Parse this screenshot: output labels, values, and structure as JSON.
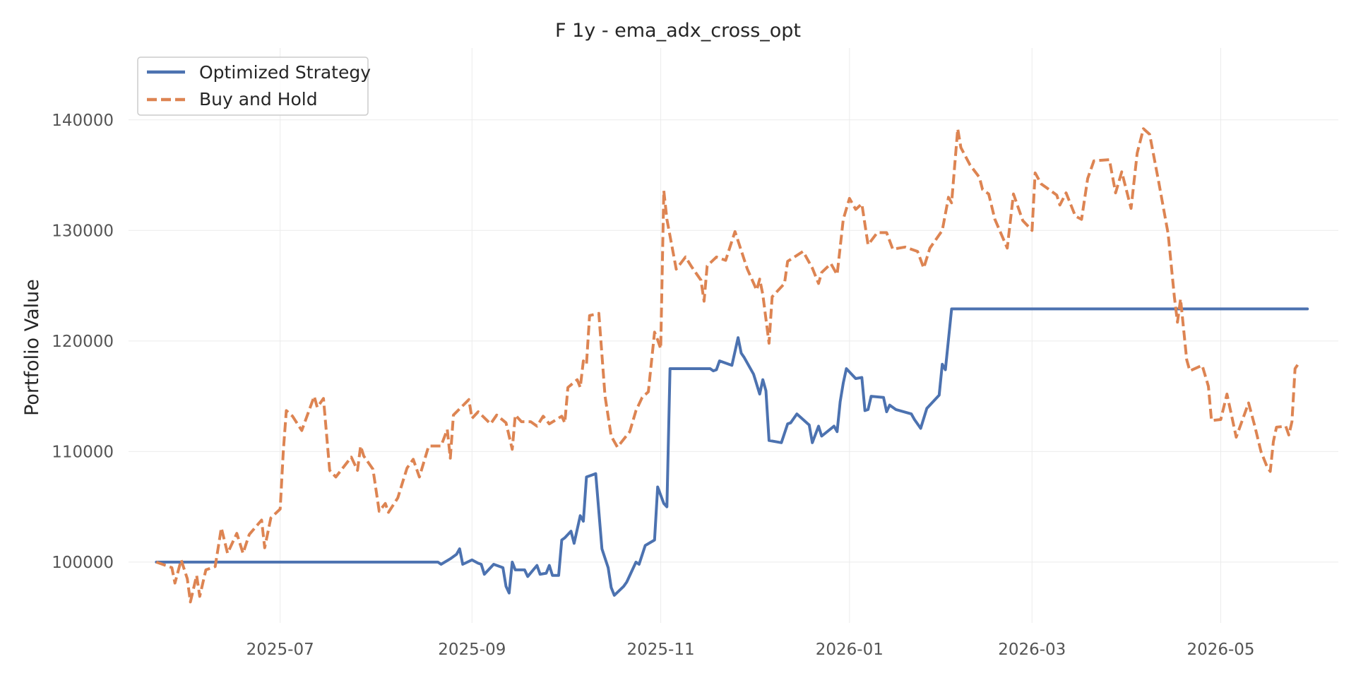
{
  "chart_data": {
    "type": "line",
    "title": "F 1y - ema_adx_cross_opt",
    "xlabel": "",
    "ylabel": "Portfolio Value",
    "x_ticks": [
      "2025-07",
      "2025-09",
      "2025-11",
      "2026-01",
      "2026-03",
      "2026-05"
    ],
    "y_ticks": [
      "100000",
      "110000",
      "120000",
      "130000",
      "140000"
    ],
    "xlim": [
      "2025-05-13",
      "2026-06-08"
    ],
    "ylim": [
      94500,
      146500
    ],
    "grid": true,
    "legend_position": "top-left",
    "series": [
      {
        "name": "Optimized Strategy",
        "color": "#4c72b0",
        "style": "solid",
        "points": [
          [
            "2025-05-22",
            100000
          ],
          [
            "2025-08-21",
            100000
          ],
          [
            "2025-08-22",
            99800
          ],
          [
            "2025-08-25",
            100300
          ],
          [
            "2025-08-27",
            100700
          ],
          [
            "2025-08-28",
            101200
          ],
          [
            "2025-08-29",
            99800
          ],
          [
            "2025-09-01",
            100200
          ],
          [
            "2025-09-03",
            99900
          ],
          [
            "2025-09-04",
            99800
          ],
          [
            "2025-09-05",
            98900
          ],
          [
            "2025-09-08",
            99800
          ],
          [
            "2025-09-11",
            99500
          ],
          [
            "2025-09-12",
            97800
          ],
          [
            "2025-09-13",
            97200
          ],
          [
            "2025-09-14",
            100000
          ],
          [
            "2025-09-15",
            99300
          ],
          [
            "2025-09-18",
            99300
          ],
          [
            "2025-09-19",
            98700
          ],
          [
            "2025-09-22",
            99700
          ],
          [
            "2025-09-23",
            98900
          ],
          [
            "2025-09-25",
            99000
          ],
          [
            "2025-09-26",
            99700
          ],
          [
            "2025-09-27",
            98800
          ],
          [
            "2025-09-29",
            98800
          ],
          [
            "2025-09-30",
            102000
          ],
          [
            "2025-10-01",
            102200
          ],
          [
            "2025-10-03",
            102800
          ],
          [
            "2025-10-04",
            101700
          ],
          [
            "2025-10-06",
            104200
          ],
          [
            "2025-10-07",
            103700
          ],
          [
            "2025-10-08",
            107700
          ],
          [
            "2025-10-10",
            107900
          ],
          [
            "2025-10-11",
            108000
          ],
          [
            "2025-10-13",
            101200
          ],
          [
            "2025-10-15",
            99500
          ],
          [
            "2025-10-16",
            97700
          ],
          [
            "2025-10-17",
            97000
          ],
          [
            "2025-10-20",
            97800
          ],
          [
            "2025-10-21",
            98200
          ],
          [
            "2025-10-24",
            100000
          ],
          [
            "2025-10-25",
            99800
          ],
          [
            "2025-10-27",
            101500
          ],
          [
            "2025-10-30",
            102000
          ],
          [
            "2025-10-31",
            106800
          ],
          [
            "2025-11-02",
            105300
          ],
          [
            "2025-11-03",
            105000
          ],
          [
            "2025-11-04",
            117500
          ],
          [
            "2025-11-17",
            117500
          ],
          [
            "2025-11-18",
            117300
          ],
          [
            "2025-11-19",
            117400
          ],
          [
            "2025-11-20",
            118200
          ],
          [
            "2025-11-24",
            117800
          ],
          [
            "2025-11-26",
            120300
          ],
          [
            "2025-11-27",
            118900
          ],
          [
            "2025-11-28",
            118500
          ],
          [
            "2025-12-01",
            117000
          ],
          [
            "2025-12-03",
            115200
          ],
          [
            "2025-12-04",
            116500
          ],
          [
            "2025-12-05",
            115500
          ],
          [
            "2025-12-06",
            111000
          ],
          [
            "2025-12-10",
            110800
          ],
          [
            "2025-12-12",
            112500
          ],
          [
            "2025-12-13",
            112600
          ],
          [
            "2025-12-15",
            113400
          ],
          [
            "2025-12-19",
            112400
          ],
          [
            "2025-12-20",
            110800
          ],
          [
            "2025-12-22",
            112300
          ],
          [
            "2025-12-23",
            111400
          ],
          [
            "2025-12-27",
            112300
          ],
          [
            "2025-12-28",
            111800
          ],
          [
            "2025-12-29",
            114500
          ],
          [
            "2025-12-30",
            116200
          ],
          [
            "2025-12-31",
            117500
          ],
          [
            "2026-01-03",
            116600
          ],
          [
            "2026-01-05",
            116700
          ],
          [
            "2026-01-06",
            113700
          ],
          [
            "2026-01-07",
            113800
          ],
          [
            "2026-01-08",
            115000
          ],
          [
            "2026-01-12",
            114900
          ],
          [
            "2026-01-13",
            113600
          ],
          [
            "2026-01-14",
            114200
          ],
          [
            "2026-01-16",
            113800
          ],
          [
            "2026-01-21",
            113400
          ],
          [
            "2026-01-22",
            112900
          ],
          [
            "2026-01-24",
            112100
          ],
          [
            "2026-01-26",
            113900
          ],
          [
            "2026-01-30",
            115100
          ],
          [
            "2026-01-31",
            117900
          ],
          [
            "2026-02-01",
            117400
          ],
          [
            "2026-02-03",
            122900
          ],
          [
            "2026-05-29",
            122900
          ]
        ]
      },
      {
        "name": "Buy and Hold",
        "color": "#dd8452",
        "style": "dashed",
        "points": [
          [
            "2025-05-22",
            100000
          ],
          [
            "2025-05-27",
            99500
          ],
          [
            "2025-05-28",
            98100
          ],
          [
            "2025-05-30",
            100200
          ],
          [
            "2025-06-01",
            98500
          ],
          [
            "2025-06-02",
            96400
          ],
          [
            "2025-06-04",
            98800
          ],
          [
            "2025-06-05",
            96900
          ],
          [
            "2025-06-07",
            99300
          ],
          [
            "2025-06-10",
            99600
          ],
          [
            "2025-06-12",
            103100
          ],
          [
            "2025-06-14",
            100800
          ],
          [
            "2025-06-17",
            102600
          ],
          [
            "2025-06-19",
            100800
          ],
          [
            "2025-06-21",
            102500
          ],
          [
            "2025-06-25",
            103800
          ],
          [
            "2025-06-26",
            101300
          ],
          [
            "2025-06-28",
            104000
          ],
          [
            "2025-07-01",
            104800
          ],
          [
            "2025-07-02",
            110000
          ],
          [
            "2025-07-03",
            113700
          ],
          [
            "2025-07-05",
            113200
          ],
          [
            "2025-07-08",
            111900
          ],
          [
            "2025-07-12",
            115000
          ],
          [
            "2025-07-13",
            114000
          ],
          [
            "2025-07-15",
            114800
          ],
          [
            "2025-07-17",
            108300
          ],
          [
            "2025-07-19",
            107700
          ],
          [
            "2025-07-24",
            109500
          ],
          [
            "2025-07-26",
            108300
          ],
          [
            "2025-07-27",
            110500
          ],
          [
            "2025-07-28",
            109600
          ],
          [
            "2025-07-31",
            108400
          ],
          [
            "2025-08-02",
            104600
          ],
          [
            "2025-08-04",
            105300
          ],
          [
            "2025-08-05",
            104500
          ],
          [
            "2025-08-08",
            105800
          ],
          [
            "2025-08-11",
            108500
          ],
          [
            "2025-08-13",
            109300
          ],
          [
            "2025-08-15",
            107700
          ],
          [
            "2025-08-18",
            110500
          ],
          [
            "2025-08-22",
            110500
          ],
          [
            "2025-08-24",
            112000
          ],
          [
            "2025-08-25",
            109400
          ],
          [
            "2025-08-26",
            113300
          ],
          [
            "2025-08-31",
            114700
          ],
          [
            "2025-09-01",
            113000
          ],
          [
            "2025-09-03",
            113600
          ],
          [
            "2025-09-07",
            112500
          ],
          [
            "2025-09-09",
            113300
          ],
          [
            "2025-09-12",
            112600
          ],
          [
            "2025-09-14",
            110200
          ],
          [
            "2025-09-15",
            113300
          ],
          [
            "2025-09-17",
            112700
          ],
          [
            "2025-09-20",
            112700
          ],
          [
            "2025-09-22",
            112300
          ],
          [
            "2025-09-24",
            113200
          ],
          [
            "2025-09-26",
            112500
          ],
          [
            "2025-09-30",
            113200
          ],
          [
            "2025-10-01",
            112600
          ],
          [
            "2025-10-02",
            115800
          ],
          [
            "2025-10-05",
            116500
          ],
          [
            "2025-10-06",
            115800
          ],
          [
            "2025-10-07",
            118200
          ],
          [
            "2025-10-08",
            117900
          ],
          [
            "2025-10-09",
            122300
          ],
          [
            "2025-10-12",
            122500
          ],
          [
            "2025-10-14",
            115000
          ],
          [
            "2025-10-16",
            111400
          ],
          [
            "2025-10-18",
            110400
          ],
          [
            "2025-10-22",
            111800
          ],
          [
            "2025-10-24",
            113700
          ],
          [
            "2025-10-26",
            114900
          ],
          [
            "2025-10-28",
            115400
          ],
          [
            "2025-10-30",
            120800
          ],
          [
            "2025-10-31",
            120100
          ],
          [
            "2025-11-01",
            119300
          ],
          [
            "2025-11-02",
            133600
          ],
          [
            "2025-11-03",
            131000
          ],
          [
            "2025-11-05",
            128000
          ],
          [
            "2025-11-06",
            126500
          ],
          [
            "2025-11-09",
            127600
          ],
          [
            "2025-11-11",
            126700
          ],
          [
            "2025-11-14",
            125500
          ],
          [
            "2025-11-15",
            123600
          ],
          [
            "2025-11-16",
            126800
          ],
          [
            "2025-11-19",
            127600
          ],
          [
            "2025-11-22",
            127300
          ],
          [
            "2025-11-25",
            129900
          ],
          [
            "2025-11-29",
            126500
          ],
          [
            "2025-12-02",
            124600
          ],
          [
            "2025-12-03",
            125600
          ],
          [
            "2025-12-04",
            124200
          ],
          [
            "2025-12-06",
            119800
          ],
          [
            "2025-12-07",
            124000
          ],
          [
            "2025-12-11",
            125200
          ],
          [
            "2025-12-12",
            127200
          ],
          [
            "2025-12-17",
            128100
          ],
          [
            "2025-12-20",
            126600
          ],
          [
            "2025-12-22",
            125200
          ],
          [
            "2025-12-23",
            126200
          ],
          [
            "2025-12-26",
            127000
          ],
          [
            "2025-12-28",
            126000
          ],
          [
            "2025-12-30",
            131000
          ],
          [
            "2026-01-01",
            132900
          ],
          [
            "2026-01-03",
            131900
          ],
          [
            "2026-01-05",
            132400
          ],
          [
            "2026-01-07",
            128700
          ],
          [
            "2026-01-10",
            129800
          ],
          [
            "2026-01-13",
            129800
          ],
          [
            "2026-01-15",
            128300
          ],
          [
            "2026-01-17",
            128400
          ],
          [
            "2026-01-19",
            128500
          ],
          [
            "2026-01-23",
            128100
          ],
          [
            "2026-01-25",
            126600
          ],
          [
            "2026-01-27",
            128400
          ],
          [
            "2026-01-31",
            130000
          ],
          [
            "2026-02-02",
            133000
          ],
          [
            "2026-02-03",
            132500
          ],
          [
            "2026-02-05",
            139200
          ],
          [
            "2026-02-06",
            137500
          ],
          [
            "2026-02-09",
            135900
          ],
          [
            "2026-02-12",
            134800
          ],
          [
            "2026-02-13",
            133700
          ],
          [
            "2026-02-15",
            133300
          ],
          [
            "2026-02-17",
            131000
          ],
          [
            "2026-02-21",
            128400
          ],
          [
            "2026-02-23",
            133300
          ],
          [
            "2026-02-26",
            130900
          ],
          [
            "2026-03-01",
            130000
          ],
          [
            "2026-03-02",
            135200
          ],
          [
            "2026-03-04",
            134200
          ],
          [
            "2026-03-06",
            133800
          ],
          [
            "2026-03-09",
            133200
          ],
          [
            "2026-03-10",
            132300
          ],
          [
            "2026-03-12",
            133400
          ],
          [
            "2026-03-15",
            131300
          ],
          [
            "2026-03-17",
            131000
          ],
          [
            "2026-03-19",
            134700
          ],
          [
            "2026-03-21",
            136300
          ],
          [
            "2026-03-26",
            136400
          ],
          [
            "2026-03-28",
            133400
          ],
          [
            "2026-03-30",
            135300
          ],
          [
            "2026-04-02",
            132000
          ],
          [
            "2026-04-04",
            137000
          ],
          [
            "2026-04-06",
            139200
          ],
          [
            "2026-04-08",
            138700
          ],
          [
            "2026-04-11",
            134300
          ],
          [
            "2026-04-14",
            129700
          ],
          [
            "2026-04-16",
            124000
          ],
          [
            "2026-04-17",
            121700
          ],
          [
            "2026-04-18",
            123800
          ],
          [
            "2026-04-20",
            118300
          ],
          [
            "2026-04-21",
            117300
          ],
          [
            "2026-04-25",
            117800
          ],
          [
            "2026-04-27",
            115900
          ],
          [
            "2026-04-28",
            112800
          ],
          [
            "2026-05-01",
            112900
          ],
          [
            "2026-05-03",
            115200
          ],
          [
            "2026-05-06",
            111300
          ],
          [
            "2026-05-10",
            114400
          ],
          [
            "2026-05-12",
            112300
          ],
          [
            "2026-05-14",
            110000
          ],
          [
            "2026-05-16",
            108600
          ],
          [
            "2026-05-17",
            108200
          ],
          [
            "2026-05-18",
            110900
          ],
          [
            "2026-05-19",
            112200
          ],
          [
            "2026-05-22",
            112300
          ],
          [
            "2026-05-23",
            111500
          ],
          [
            "2026-05-24",
            112700
          ],
          [
            "2026-05-25",
            117500
          ],
          [
            "2026-05-26",
            117900
          ]
        ]
      }
    ]
  }
}
